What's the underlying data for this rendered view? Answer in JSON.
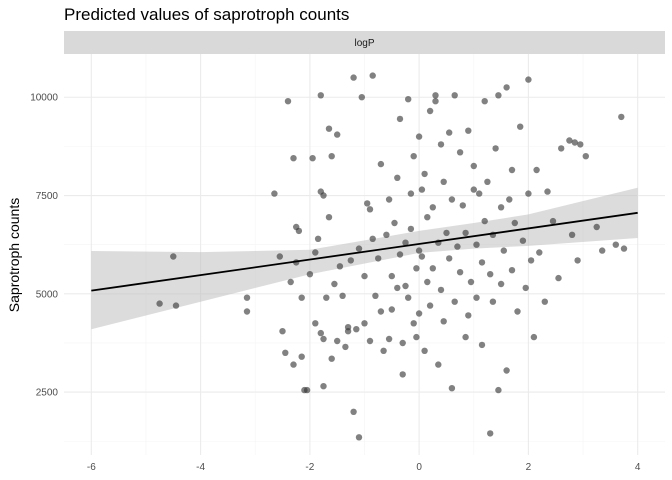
{
  "chart_data": {
    "type": "scatter",
    "title": "Predicted values of saprotroph counts",
    "panel_label": "logP",
    "xlabel": "",
    "ylabel": "Saprotroph counts",
    "xlim": [
      -6.5,
      4.5
    ],
    "ylim": [
      900,
      11100
    ],
    "x_ticks": [
      -6,
      -4,
      -2,
      0,
      2,
      4
    ],
    "y_ticks": [
      2500,
      5000,
      7500,
      10000
    ],
    "grid": true,
    "legend": "none",
    "colors": {
      "points": "#333333",
      "line": "#000000",
      "ribbon": "#bfbfbf",
      "strip_fill": "#d9d9d9",
      "grid_major": "#ebebeb",
      "grid_minor": "#f4f4f4"
    },
    "fit_line": {
      "x": [
        -6,
        4
      ],
      "y": [
        5080,
        7060
      ]
    },
    "ribbon": {
      "x": [
        -6,
        -4,
        -2,
        0,
        1,
        2,
        4
      ],
      "lower": [
        4100,
        4800,
        5500,
        6040,
        6150,
        6220,
        6420
      ],
      "upper": [
        6090,
        6060,
        6120,
        6600,
        6800,
        7020,
        7700
      ]
    },
    "points": [
      [
        -4.75,
        4750
      ],
      [
        -4.5,
        5950
      ],
      [
        -4.45,
        4700
      ],
      [
        -3.15,
        4550
      ],
      [
        -3.15,
        4900
      ],
      [
        -2.65,
        7550
      ],
      [
        -2.55,
        5950
      ],
      [
        -2.5,
        4050
      ],
      [
        -2.45,
        3500
      ],
      [
        -2.4,
        9900
      ],
      [
        -2.35,
        5300
      ],
      [
        -2.3,
        3200
      ],
      [
        -2.3,
        8450
      ],
      [
        -2.25,
        6700
      ],
      [
        -2.25,
        5800
      ],
      [
        -2.2,
        6600
      ],
      [
        -2.15,
        3400
      ],
      [
        -2.15,
        4900
      ],
      [
        -2.1,
        2550
      ],
      [
        -2.05,
        2550
      ],
      [
        -2.0,
        5500
      ],
      [
        -1.95,
        8450
      ],
      [
        -1.9,
        4250
      ],
      [
        -1.9,
        6050
      ],
      [
        -1.85,
        6400
      ],
      [
        -1.8,
        10050
      ],
      [
        -1.8,
        4000
      ],
      [
        -1.8,
        7600
      ],
      [
        -1.75,
        3850
      ],
      [
        -1.75,
        2650
      ],
      [
        -1.75,
        7500
      ],
      [
        -1.7,
        4900
      ],
      [
        -1.65,
        9200
      ],
      [
        -1.65,
        6950
      ],
      [
        -1.6,
        3350
      ],
      [
        -1.6,
        8500
      ],
      [
        -1.55,
        5250
      ],
      [
        -1.5,
        9050
      ],
      [
        -1.5,
        3800
      ],
      [
        -1.45,
        5700
      ],
      [
        -1.4,
        4950
      ],
      [
        -1.35,
        3650
      ],
      [
        -1.3,
        4150
      ],
      [
        -1.3,
        4050
      ],
      [
        -1.25,
        5850
      ],
      [
        -1.2,
        10500
      ],
      [
        -1.2,
        2000
      ],
      [
        -1.15,
        4100
      ],
      [
        -1.1,
        1350
      ],
      [
        -1.1,
        6150
      ],
      [
        -1.05,
        10000
      ],
      [
        -1.0,
        4250
      ],
      [
        -1.0,
        5450
      ],
      [
        -0.95,
        7300
      ],
      [
        -0.9,
        7150
      ],
      [
        -0.9,
        3800
      ],
      [
        -0.85,
        10550
      ],
      [
        -0.85,
        6400
      ],
      [
        -0.8,
        4950
      ],
      [
        -0.75,
        5900
      ],
      [
        -0.7,
        8300
      ],
      [
        -0.7,
        4550
      ],
      [
        -0.65,
        3550
      ],
      [
        -0.6,
        6500
      ],
      [
        -0.55,
        7400
      ],
      [
        -0.55,
        3850
      ],
      [
        -0.5,
        5450
      ],
      [
        -0.5,
        4600
      ],
      [
        -0.45,
        6800
      ],
      [
        -0.4,
        7950
      ],
      [
        -0.4,
        5150
      ],
      [
        -0.35,
        9450
      ],
      [
        -0.35,
        6000
      ],
      [
        -0.3,
        2950
      ],
      [
        -0.3,
        3750
      ],
      [
        -0.25,
        5200
      ],
      [
        -0.25,
        6300
      ],
      [
        -0.2,
        9950
      ],
      [
        -0.2,
        4900
      ],
      [
        -0.15,
        6650
      ],
      [
        -0.15,
        7550
      ],
      [
        -0.1,
        8500
      ],
      [
        -0.1,
        4250
      ],
      [
        -0.05,
        3900
      ],
      [
        -0.05,
        5650
      ],
      [
        0.0,
        9000
      ],
      [
        0.0,
        6100
      ],
      [
        0.0,
        4500
      ],
      [
        0.05,
        7650
      ],
      [
        0.05,
        5950
      ],
      [
        0.1,
        8050
      ],
      [
        0.1,
        3550
      ],
      [
        0.15,
        5300
      ],
      [
        0.15,
        6950
      ],
      [
        0.2,
        9650
      ],
      [
        0.2,
        4700
      ],
      [
        0.25,
        7200
      ],
      [
        0.25,
        5650
      ],
      [
        0.3,
        10050
      ],
      [
        0.3,
        9900
      ],
      [
        0.35,
        3200
      ],
      [
        0.35,
        6300
      ],
      [
        0.4,
        8800
      ],
      [
        0.4,
        5100
      ],
      [
        0.45,
        7850
      ],
      [
        0.45,
        4300
      ],
      [
        0.5,
        6550
      ],
      [
        0.55,
        9100
      ],
      [
        0.55,
        5900
      ],
      [
        0.6,
        2600
      ],
      [
        0.6,
        7400
      ],
      [
        0.65,
        10050
      ],
      [
        0.65,
        4800
      ],
      [
        0.7,
        6200
      ],
      [
        0.75,
        8600
      ],
      [
        0.75,
        5550
      ],
      [
        0.8,
        7250
      ],
      [
        0.85,
        3900
      ],
      [
        0.85,
        6550
      ],
      [
        0.9,
        9150
      ],
      [
        0.9,
        4450
      ],
      [
        0.95,
        5300
      ],
      [
        1.0,
        7650
      ],
      [
        1.0,
        8250
      ],
      [
        1.05,
        6250
      ],
      [
        1.05,
        4900
      ],
      [
        1.1,
        7550
      ],
      [
        1.15,
        5800
      ],
      [
        1.15,
        3700
      ],
      [
        1.2,
        9900
      ],
      [
        1.2,
        6850
      ],
      [
        1.25,
        7850
      ],
      [
        1.3,
        5500
      ],
      [
        1.3,
        1450
      ],
      [
        1.35,
        4800
      ],
      [
        1.35,
        6500
      ],
      [
        1.4,
        8700
      ],
      [
        1.45,
        10050
      ],
      [
        1.45,
        2550
      ],
      [
        1.5,
        7200
      ],
      [
        1.5,
        5250
      ],
      [
        1.55,
        6100
      ],
      [
        1.6,
        10250
      ],
      [
        1.6,
        3050
      ],
      [
        1.65,
        7400
      ],
      [
        1.7,
        5600
      ],
      [
        1.7,
        8150
      ],
      [
        1.75,
        6800
      ],
      [
        1.8,
        4550
      ],
      [
        1.85,
        9250
      ],
      [
        1.9,
        6350
      ],
      [
        1.95,
        5150
      ],
      [
        2.0,
        10450
      ],
      [
        2.0,
        7550
      ],
      [
        2.05,
        5850
      ],
      [
        2.1,
        3900
      ],
      [
        2.15,
        8150
      ],
      [
        2.2,
        6050
      ],
      [
        2.3,
        4800
      ],
      [
        2.35,
        7600
      ],
      [
        2.45,
        6850
      ],
      [
        2.55,
        5400
      ],
      [
        2.6,
        8700
      ],
      [
        2.75,
        8900
      ],
      [
        2.8,
        6500
      ],
      [
        2.85,
        8850
      ],
      [
        2.9,
        5850
      ],
      [
        2.95,
        8800
      ],
      [
        3.05,
        8500
      ],
      [
        3.25,
        6700
      ],
      [
        3.35,
        6100
      ],
      [
        3.6,
        6250
      ],
      [
        3.7,
        9500
      ],
      [
        3.75,
        6150
      ]
    ]
  }
}
